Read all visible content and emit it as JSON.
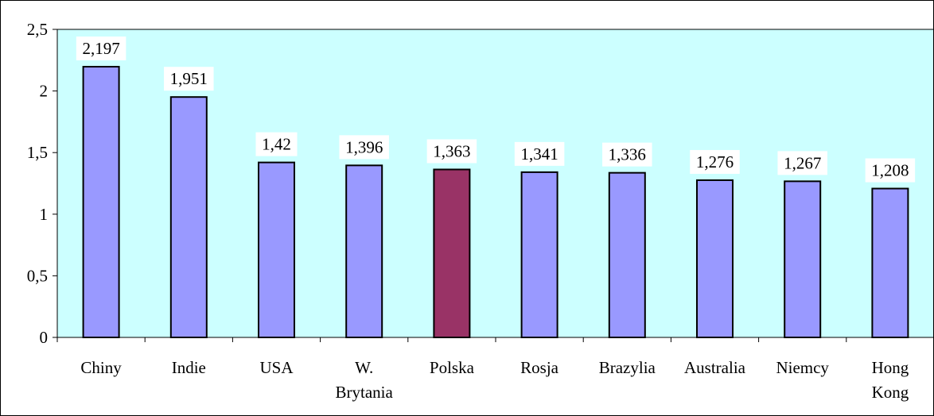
{
  "chart_data": {
    "type": "bar",
    "title": "",
    "xlabel": "",
    "ylabel": "",
    "categories": [
      [
        "Chiny"
      ],
      [
        "Indie"
      ],
      [
        "USA"
      ],
      [
        "W.",
        "Brytania"
      ],
      [
        "Polska"
      ],
      [
        "Rosja"
      ],
      [
        "Brazylia"
      ],
      [
        "Australia"
      ],
      [
        "Niemcy"
      ],
      [
        "Hong",
        "Kong"
      ]
    ],
    "values": [
      2.197,
      1.951,
      1.42,
      1.396,
      1.363,
      1.341,
      1.336,
      1.276,
      1.267,
      1.208
    ],
    "data_labels": [
      "2,197",
      "1,951",
      "1,42",
      "1,396",
      "1,363",
      "1,341",
      "1,336",
      "1,276",
      "1,267",
      "1,208"
    ],
    "ylim": [
      0,
      2.5
    ],
    "yticks": [
      0,
      0.5,
      1,
      1.5,
      2,
      2.5
    ],
    "ytick_labels": [
      "0",
      "0,5",
      "1",
      "1,5",
      "2",
      "2,5"
    ],
    "highlight_index": 4,
    "colors": {
      "plot_background": "#ccffff",
      "bar": "#9999ff",
      "bar_highlight": "#993366",
      "bar_edge": "#000000"
    },
    "grid": false,
    "legend": "none"
  }
}
